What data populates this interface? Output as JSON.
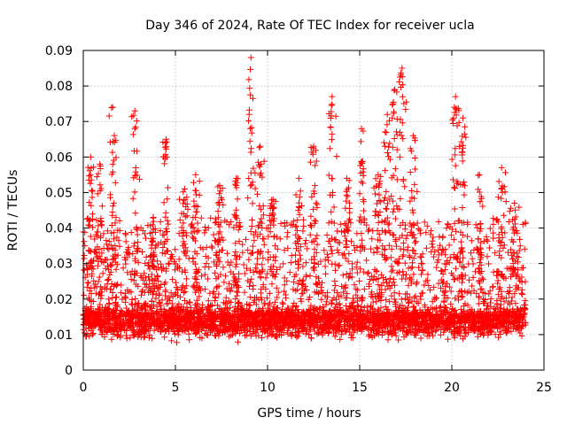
{
  "chart_data": {
    "type": "scatter",
    "title": "Day 346 of 2024, Rate Of TEC Index for receiver ucla",
    "xlabel": "GPS time / hours",
    "ylabel": "ROTI / TECUs",
    "xlim": [
      0,
      25
    ],
    "ylim": [
      0,
      0.09
    ],
    "x_ticks": [
      "0",
      "5",
      "10",
      "15",
      "20",
      "25"
    ],
    "x_tick_values": [
      0,
      5,
      10,
      15,
      20,
      25
    ],
    "y_ticks": [
      "0",
      "0.01",
      "0.02",
      "0.03",
      "0.04",
      "0.05",
      "0.06",
      "0.07",
      "0.08",
      "0.09"
    ],
    "y_tick_values": [
      0,
      0.01,
      0.02,
      0.03,
      0.04,
      0.05,
      0.06,
      0.07,
      0.08,
      0.09
    ],
    "grid": true,
    "marker": "+",
    "series": [
      {
        "name": "ROTI",
        "color": "#ff0000",
        "x_range_hours": [
          0,
          24
        ],
        "baseline_range": [
          0.005,
          0.022
        ],
        "bursts": [
          {
            "x": 0.4,
            "peak": 0.06
          },
          {
            "x": 0.9,
            "peak": 0.058
          },
          {
            "x": 1.6,
            "peak": 0.074
          },
          {
            "x": 2.8,
            "peak": 0.073
          },
          {
            "x": 3.8,
            "peak": 0.043
          },
          {
            "x": 4.5,
            "peak": 0.065
          },
          {
            "x": 5.5,
            "peak": 0.051
          },
          {
            "x": 6.1,
            "peak": 0.055
          },
          {
            "x": 7.4,
            "peak": 0.052
          },
          {
            "x": 8.3,
            "peak": 0.054
          },
          {
            "x": 9.1,
            "peak": 0.088
          },
          {
            "x": 9.6,
            "peak": 0.063
          },
          {
            "x": 10.3,
            "peak": 0.048
          },
          {
            "x": 11.7,
            "peak": 0.054
          },
          {
            "x": 12.5,
            "peak": 0.063
          },
          {
            "x": 13.5,
            "peak": 0.077
          },
          {
            "x": 14.3,
            "peak": 0.054
          },
          {
            "x": 15.1,
            "peak": 0.068
          },
          {
            "x": 16.0,
            "peak": 0.055
          },
          {
            "x": 16.5,
            "peak": 0.072
          },
          {
            "x": 16.9,
            "peak": 0.079
          },
          {
            "x": 17.3,
            "peak": 0.085
          },
          {
            "x": 17.9,
            "peak": 0.066
          },
          {
            "x": 20.2,
            "peak": 0.077
          },
          {
            "x": 20.6,
            "peak": 0.071
          },
          {
            "x": 21.5,
            "peak": 0.055
          },
          {
            "x": 22.7,
            "peak": 0.057
          },
          {
            "x": 23.4,
            "peak": 0.047
          }
        ]
      }
    ]
  }
}
